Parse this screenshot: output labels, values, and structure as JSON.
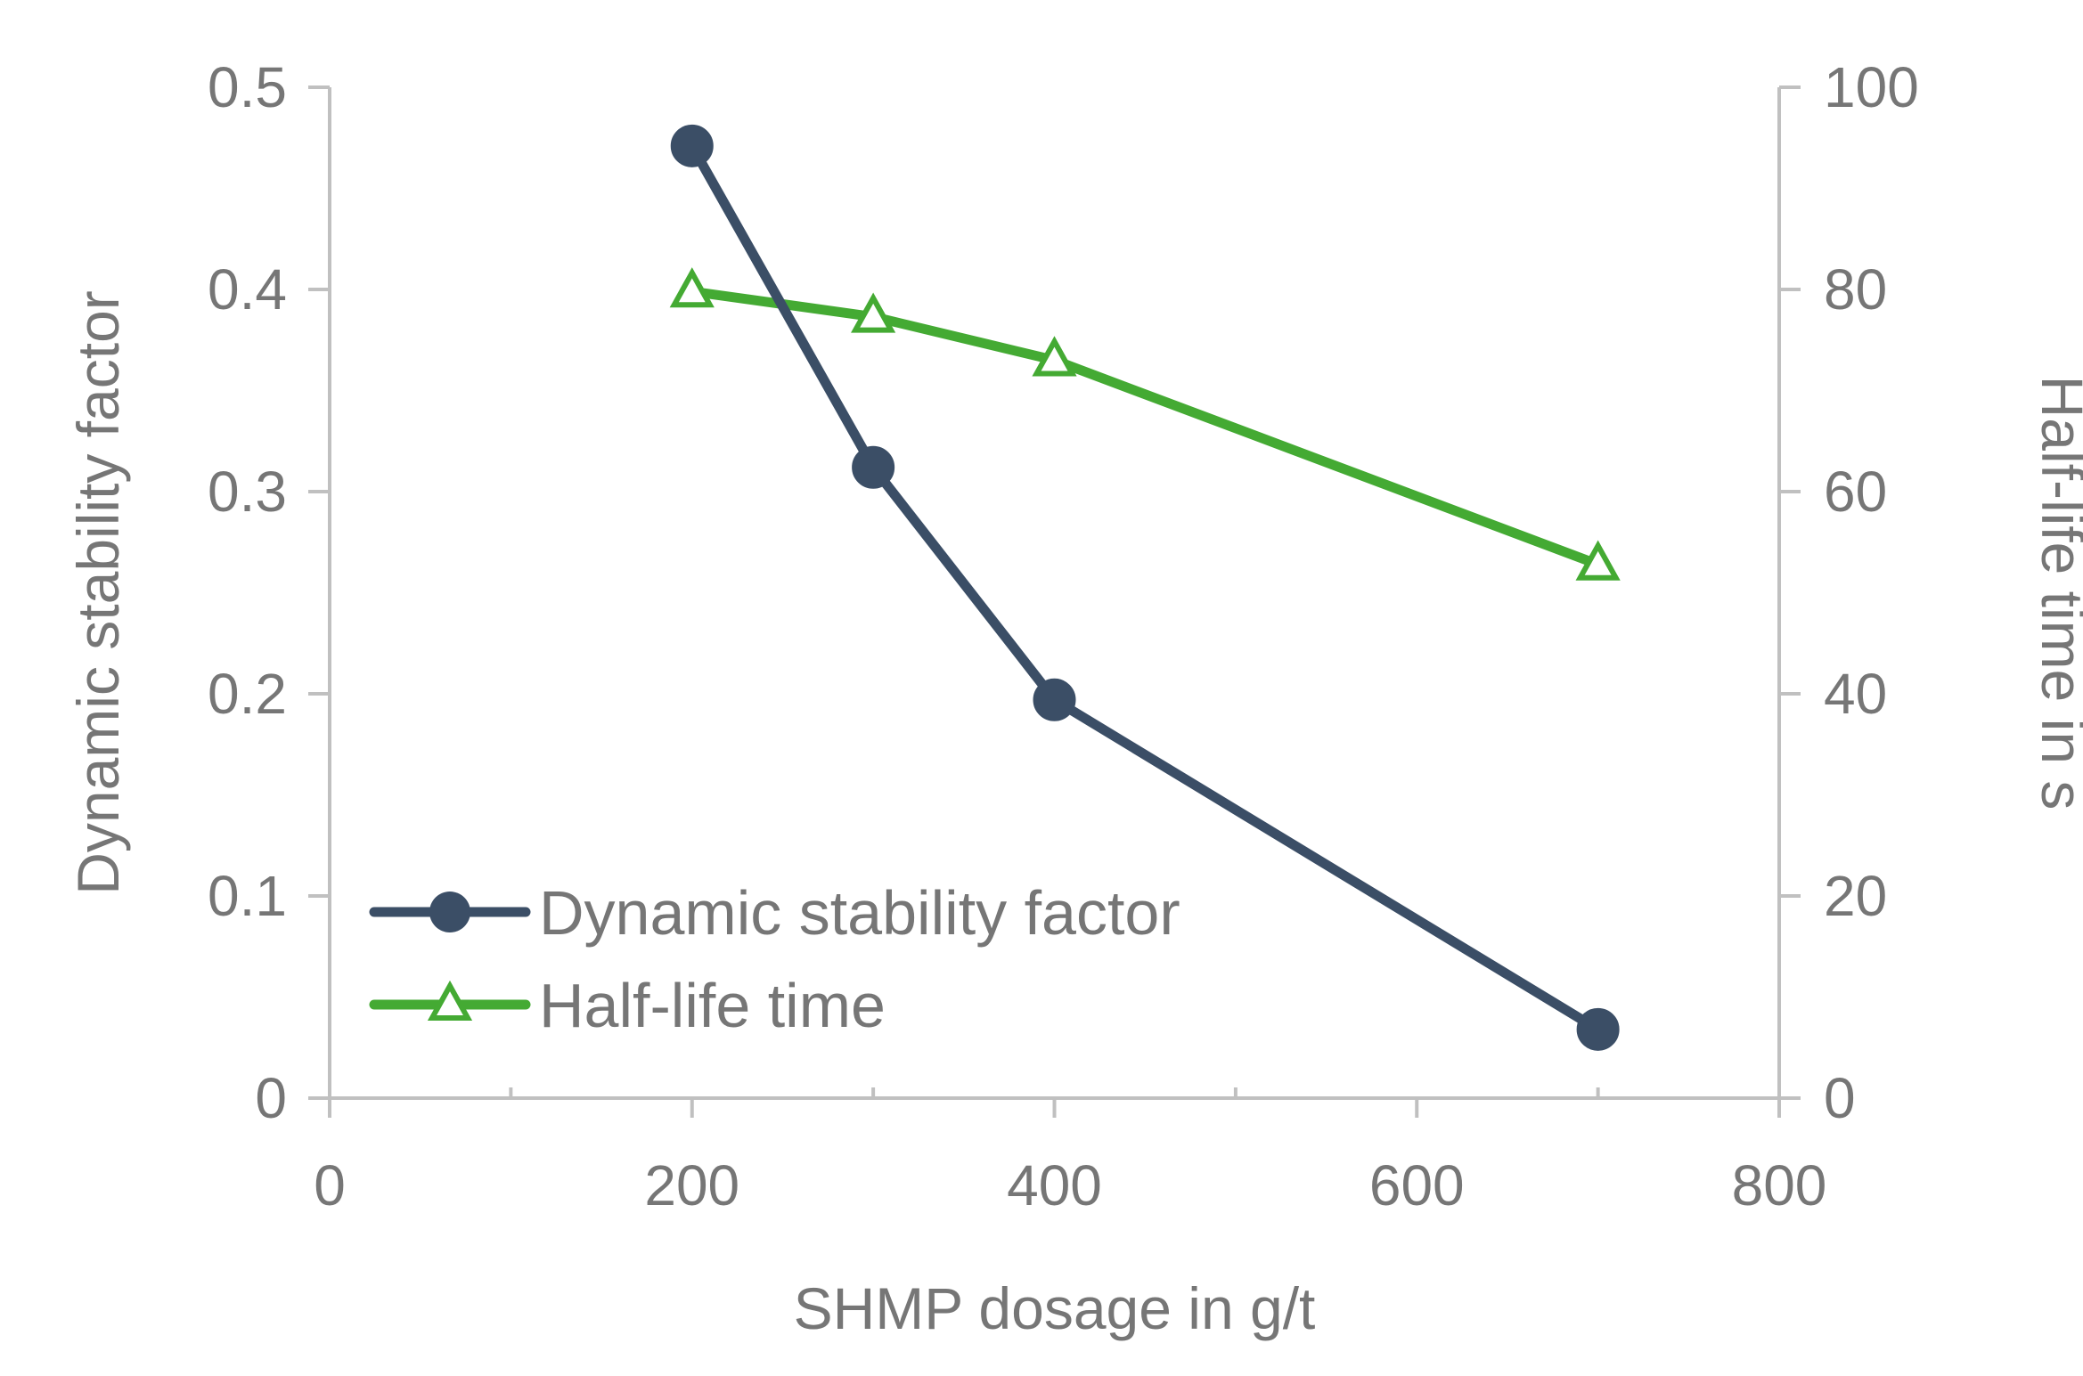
{
  "chart_data": {
    "type": "line",
    "title": "",
    "xlabel": "SHMP dosage in g/t",
    "ylabel": "Dynamic stability factor",
    "y2label": "Half-life time in s",
    "xlim": [
      0,
      800
    ],
    "ylim": [
      0,
      0.5
    ],
    "y2lim": [
      0,
      100
    ],
    "x_ticks": [
      0,
      200,
      400,
      600,
      800
    ],
    "x_tick_labels": [
      "0",
      "200",
      "400",
      "600",
      "800"
    ],
    "x_minor_ticks": [
      100,
      300,
      500,
      700
    ],
    "y_ticks": [
      0,
      0.1,
      0.2,
      0.3,
      0.4,
      0.5
    ],
    "y_tick_labels": [
      "0",
      "0.1",
      "0.2",
      "0.3",
      "0.4",
      "0.5"
    ],
    "y2_ticks": [
      0,
      20,
      40,
      60,
      80,
      100
    ],
    "y2_tick_labels": [
      "0",
      "20",
      "40",
      "60",
      "80",
      "100"
    ],
    "grid": false,
    "legend_position": "bottom-left",
    "series": [
      {
        "name": "Dynamic stability factor",
        "axis": "left",
        "color": "#3b4e66",
        "marker": "circle",
        "x": [
          200,
          300,
          400,
          700
        ],
        "values": [
          0.471,
          0.312,
          0.197,
          0.034
        ]
      },
      {
        "name": "Half-life time",
        "axis": "right",
        "color": "#44aa33",
        "marker": "triangle",
        "x": [
          200,
          300,
          400,
          700
        ],
        "values": [
          79.8,
          77.3,
          73.0,
          52.8
        ]
      }
    ]
  }
}
